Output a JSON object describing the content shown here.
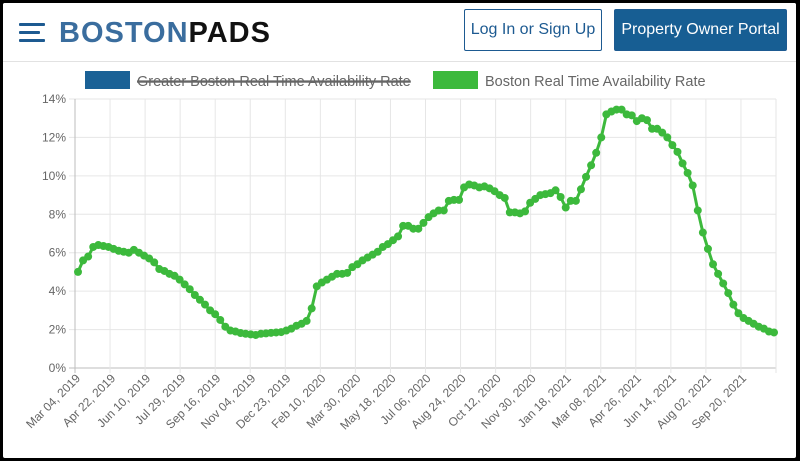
{
  "header": {
    "logo_part1": "BOSTON",
    "logo_part2": "PADS",
    "login_label": "Log In or Sign Up",
    "owner_portal_label": "Property Owner Portal",
    "brand_color": "#175e93"
  },
  "chart_data": {
    "type": "line",
    "title": "",
    "xlabel": "",
    "ylabel": "",
    "ylim": [
      0,
      14
    ],
    "yticks": [
      "0%",
      "2%",
      "4%",
      "6%",
      "8%",
      "10%",
      "12%",
      "14%"
    ],
    "grid": true,
    "legend_position": "top",
    "xtick_labels": [
      "Mar 04, 2019",
      "Apr 22, 2019",
      "Jun 10, 2019",
      "Jul 29, 2019",
      "Sep 16, 2019",
      "Nov 04, 2019",
      "Dec 23, 2019",
      "Feb 10, 2020",
      "Mar 30, 2020",
      "May 18, 2020",
      "Jul 06, 2020",
      "Aug 24, 2020",
      "Oct 12, 2020",
      "Nov 30, 2020",
      "Jan 18, 2021",
      "Mar 08, 2021",
      "Apr 26, 2021",
      "Jun 14, 2021",
      "Aug 02, 2021",
      "Sep 20, 2021"
    ],
    "series": [
      {
        "name": "Greater Boston Real Time Availability Rate",
        "color": "#1a6196",
        "hidden": true,
        "values": []
      },
      {
        "name": "Boston Real Time Availability Rate",
        "color": "#3cb93c",
        "hidden": false,
        "values": [
          5.0,
          5.6,
          5.8,
          6.3,
          6.4,
          6.35,
          6.3,
          6.2,
          6.1,
          6.05,
          6.0,
          6.15,
          6.0,
          5.85,
          5.7,
          5.5,
          5.15,
          5.05,
          4.9,
          4.8,
          4.6,
          4.35,
          4.1,
          3.8,
          3.55,
          3.3,
          3.0,
          2.8,
          2.5,
          2.15,
          1.95,
          1.9,
          1.82,
          1.78,
          1.75,
          1.72,
          1.78,
          1.8,
          1.83,
          1.85,
          1.87,
          1.95,
          2.05,
          2.2,
          2.3,
          2.45,
          3.1,
          4.25,
          4.45,
          4.6,
          4.75,
          4.9,
          4.9,
          4.95,
          5.25,
          5.4,
          5.6,
          5.75,
          5.9,
          6.05,
          6.3,
          6.45,
          6.65,
          6.85,
          7.4,
          7.4,
          7.25,
          7.25,
          7.55,
          7.85,
          8.05,
          8.2,
          8.2,
          8.7,
          8.75,
          8.75,
          9.4,
          9.55,
          9.5,
          9.4,
          9.45,
          9.35,
          9.2,
          9.0,
          8.85,
          8.1,
          8.1,
          8.05,
          8.15,
          8.6,
          8.8,
          9.0,
          9.05,
          9.1,
          9.25,
          8.9,
          8.35,
          8.7,
          8.7,
          9.3,
          9.95,
          10.55,
          11.2,
          12.0,
          13.2,
          13.35,
          13.45,
          13.45,
          13.2,
          13.15,
          12.85,
          13.0,
          12.9,
          12.45,
          12.45,
          12.25,
          12.0,
          11.6,
          11.25,
          10.65,
          10.15,
          9.5,
          8.2,
          7.05,
          6.2,
          5.4,
          4.9,
          4.4,
          3.9,
          3.3,
          2.85,
          2.6,
          2.45,
          2.3,
          2.15,
          2.05,
          1.9,
          1.85
        ]
      }
    ]
  }
}
